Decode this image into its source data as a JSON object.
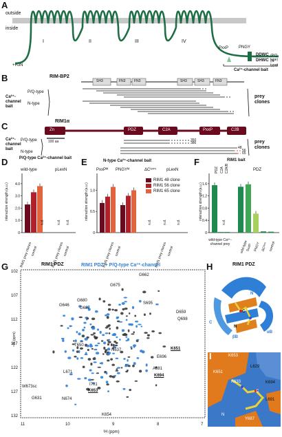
{
  "panelA": {
    "letter": "A",
    "outside": "outside",
    "inside": "inside",
    "nterm": "+H3N",
    "domains": [
      "I",
      "II",
      "III",
      "IV"
    ],
    "pxxp": "PxxP",
    "pngy": "PNGY",
    "ddwc": "DDWC",
    "ddwc_note": "(P/Q-type)",
    "dhwc": "DHWC",
    "dhwc_note": "(N-type)",
    "bait": "Ca²⁺-channel bait"
  },
  "panelB": {
    "letter": "B",
    "protein": "RIM-BP2",
    "domains": [
      "SH3",
      "FN3",
      "FN3",
      "SH3",
      "SH3",
      "FN3"
    ],
    "bait_label": "Ca²⁺- channel bait",
    "pq": "P/Q-type",
    "n": "N-type",
    "prey": "prey clones"
  },
  "panelC": {
    "letter": "C",
    "protein": "RIM1α",
    "domains": [
      "Zn",
      "PDZ",
      "C2A",
      "PxxP",
      "C2B"
    ],
    "scale": "100 aa",
    "bait_label": "Ca²⁺- channel bait",
    "pq": "P/Q-type",
    "n": "N-type",
    "prey": "prey clones",
    "clone_ids": [
      "350",
      "386",
      "48",
      "56",
      "65"
    ]
  },
  "panelD": {
    "letter": "D",
    "title": "P/Q-type Ca²⁺-channel bait",
    "group1": "wild-type",
    "group2": "pLexN",
    "ylabel": "interaction strength (a.u.)",
    "yticks": [
      "0",
      "1.0",
      "2.0",
      "3.0",
      "4.0"
    ],
    "xlabels": [
      "RIM1 prey clones",
      "control",
      "RIM1 prey clones",
      "control"
    ],
    "nd": "n.d."
  },
  "panelE": {
    "letter": "E",
    "title": "N-type Ca²⁺-channel bait",
    "groups": [
      "PxxPᴹ",
      "PNGYᴹ",
      "ΔCᵗᵉʳᵐ",
      "pLexN"
    ],
    "ylabel": "interaction strength (a.u.)",
    "yticks": [
      "0",
      "0.5",
      "1.0"
    ],
    "legend": [
      "RIM1 48 clone",
      "RIM1 56 clone",
      "RIM1 65 clone"
    ],
    "xlabels": [
      "RIM1 prey clones",
      "control",
      "RIM1 prey clones",
      "control"
    ],
    "nd": "n.d."
  },
  "panelF": {
    "letter": "F",
    "title": "RIM1 bait",
    "domain_labels": [
      "PDZ",
      "C2A",
      "C2A/B"
    ],
    "pdz_group": "PDZ",
    "ylabel": "interaction strength (a.u.)",
    "yticks": [
      "0",
      "0.4",
      "0.8",
      "1.2",
      "1.6"
    ],
    "xlabels_left": "wild-type Ca²⁺-channel prey",
    "xlabels_right": [
      "wild-type",
      "SxxP",
      "PNGY",
      "ΔCᵗᵉʳᵐ",
      "control"
    ],
    "nd": "n.d."
  },
  "panelG": {
    "letter": "G",
    "title_a": "RIM1 PDZ",
    "title_b": "RIM1 PDZ + P/Q-type Ca²⁺-channel",
    "xlabel": "¹H (ppm)",
    "ylabel": "¹⁵N (ppm)",
    "xticks": [
      "11",
      "10",
      "9",
      "8",
      "7"
    ],
    "yticks": [
      "102",
      "107",
      "112",
      "117",
      "122",
      "127",
      "132"
    ],
    "peaks": [
      "G662",
      "G675",
      "G680",
      "G646",
      "G687",
      "S695",
      "D659",
      "Q698",
      "T650",
      "N637",
      "K651",
      "E696",
      "A681",
      "K694",
      "L671",
      "I701",
      "W673sc",
      "K653",
      "G631",
      "N674",
      "K654"
    ]
  },
  "panelH": {
    "letter": "H",
    "title": "RIM1 PDZ",
    "labels": [
      "N",
      "C",
      "C",
      "N",
      "βB",
      "αB"
    ]
  },
  "panelI": {
    "letter": "I",
    "labels": [
      "K653",
      "L629",
      "K651",
      "K633",
      "K694",
      "C",
      "L691",
      "Y687",
      "N"
    ]
  },
  "chart_data": [
    {
      "type": "bar",
      "title": "P/Q-type Ca²⁺-channel bait",
      "ylabel": "interaction strength (a.u.)",
      "ylim": [
        0,
        4.5
      ],
      "categories": [
        "RIM1 prey clones (wild-type)",
        "control (wild-type)",
        "RIM1 prey clones (pLexN)",
        "control (pLexN)"
      ],
      "series": [
        {
          "name": "RIM1 48 clone",
          "values": [
            2.3,
            null,
            null,
            null
          ]
        },
        {
          "name": "RIM1 56 clone",
          "values": [
            3.3,
            null,
            null,
            null
          ]
        },
        {
          "name": "RIM1 65 clone",
          "values": [
            3.8,
            null,
            null,
            null
          ]
        }
      ]
    },
    {
      "type": "bar",
      "title": "N-type Ca²⁺-channel bait",
      "ylabel": "interaction strength (a.u.)",
      "ylim": [
        0,
        1.3
      ],
      "categories": [
        "PxxPᴹ",
        "PNGYᴹ",
        "ΔCᵗᵉʳᵐ",
        "pLexN"
      ],
      "series": [
        {
          "name": "RIM1 48 clone",
          "values": [
            0.7,
            0.65,
            null,
            null
          ]
        },
        {
          "name": "RIM1 56 clone",
          "values": [
            0.85,
            0.87,
            null,
            null
          ]
        },
        {
          "name": "RIM1 65 clone",
          "values": [
            1.08,
            1.0,
            null,
            null
          ]
        }
      ]
    },
    {
      "type": "bar",
      "title": "RIM1 bait",
      "ylabel": "interaction strength (a.u.)",
      "ylim": [
        0,
        1.8
      ],
      "categories": [
        "PDZ",
        "C2A",
        "C2A/B",
        "wild-type",
        "SxxP",
        "PNGY",
        "ΔCᵗᵉʳᵐ",
        "control"
      ],
      "values": [
        1.55,
        0.02,
        0.02,
        1.5,
        1.58,
        0.62,
        0.04,
        0.03
      ]
    }
  ]
}
